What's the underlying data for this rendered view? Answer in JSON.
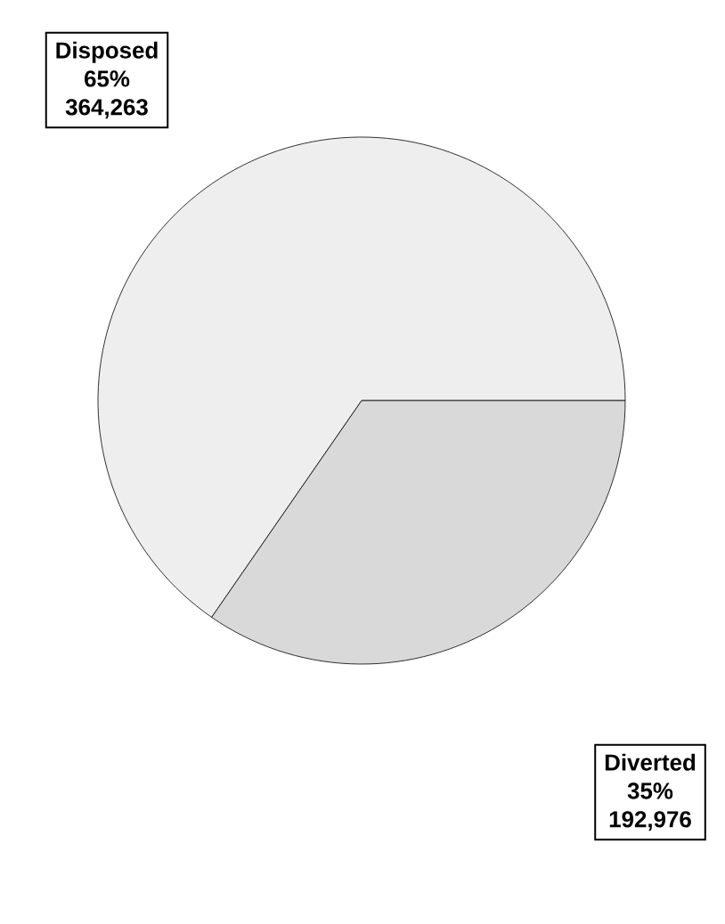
{
  "chart_data": {
    "type": "pie",
    "categories": [
      "Disposed",
      "Diverted"
    ],
    "values": [
      364263,
      192976
    ],
    "value_labels": [
      "364,263",
      "192,976"
    ],
    "annotations": [
      "65%",
      "35%"
    ],
    "colors": [
      "#eeeeee",
      "#d9d9d9"
    ],
    "legend": false
  }
}
